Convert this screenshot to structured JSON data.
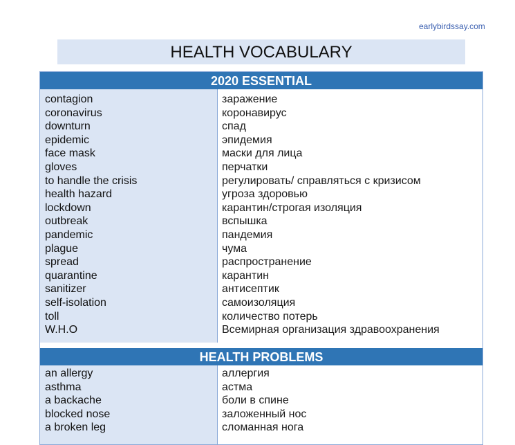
{
  "site": "earlybirdssay.com",
  "title": "HEALTH VOCABULARY",
  "sections": [
    {
      "heading": "2020 ESSENTIAL",
      "rows": [
        {
          "en": "contagion",
          "ru": "заражение"
        },
        {
          "en": "coronavirus",
          "ru": "коронавирус"
        },
        {
          "en": "downturn",
          "ru": "спад"
        },
        {
          "en": "epidemic",
          "ru": "эпидемия"
        },
        {
          "en": "face mask",
          "ru": "маски для лица"
        },
        {
          "en": "gloves",
          "ru": "перчатки"
        },
        {
          "en": "to handle the crisis",
          "ru": "регулировать/ справляться с кризисом"
        },
        {
          "en": "health hazard",
          "ru": "угроза здоровью"
        },
        {
          "en": "lockdown",
          "ru": "карантин/строгая изоляция"
        },
        {
          "en": "outbreak",
          "ru": "вспышка"
        },
        {
          "en": "pandemic",
          "ru": "пандемия"
        },
        {
          "en": "plague",
          "ru": "чума"
        },
        {
          "en": "spread",
          "ru": "распространение"
        },
        {
          "en": "quarantine",
          "ru": "карантин"
        },
        {
          "en": "sanitizer",
          "ru": "антисептик"
        },
        {
          "en": "self-isolation",
          "ru": "самоизоляция"
        },
        {
          "en": "toll",
          "ru": "количество потерь"
        },
        {
          "en": "W.H.O",
          "ru": "Всемирная организация здравоохранения"
        }
      ]
    },
    {
      "heading": "HEALTH PROBLEMS",
      "rows": [
        {
          "en": "an allergy",
          "ru": "аллергия"
        },
        {
          "en": "asthma",
          "ru": "астма"
        },
        {
          "en": "a backache",
          "ru": "боли в спине"
        },
        {
          "en": "blocked nose",
          "ru": "заложенный нос"
        },
        {
          "en": "a broken leg",
          "ru": "сломанная нога"
        }
      ]
    }
  ]
}
